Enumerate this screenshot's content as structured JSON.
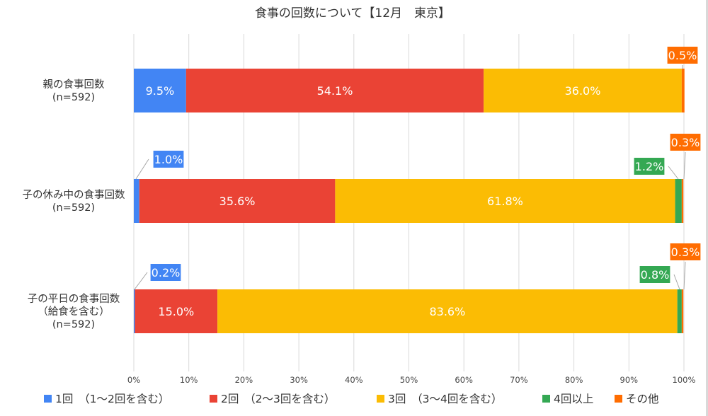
{
  "chart_data": {
    "type": "bar",
    "orientation": "horizontal",
    "stacked": "percent",
    "title": "食事の回数について【12月　東京】",
    "categories": [
      [
        "親の食事回数",
        "(n=592)"
      ],
      [
        "子の休み中の食事回数",
        "(n=592)"
      ],
      [
        "子の平日の食事回数",
        "（給食を含む）",
        "(n=592)"
      ]
    ],
    "series": [
      {
        "name": "1回　（1～2回を含む）",
        "color": "#4285f4",
        "values": [
          9.5,
          1.0,
          0.2
        ],
        "labels": [
          "9.5%",
          "1.0%",
          "0.2%"
        ]
      },
      {
        "name": "2回　（2～3回を含む）",
        "color": "#ea4335",
        "values": [
          54.1,
          35.6,
          15.0
        ],
        "labels": [
          "54.1%",
          "35.6%",
          "15.0%"
        ]
      },
      {
        "name": "3回　（3～4回を含む）",
        "color": "#fbbc04",
        "values": [
          36.0,
          61.8,
          83.6
        ],
        "labels": [
          "36.0%",
          "61.8%",
          "83.6%"
        ]
      },
      {
        "name": "4回以上",
        "color": "#34a853",
        "values": [
          0.0,
          1.2,
          0.8
        ],
        "labels": [
          "",
          "1.2%",
          "0.8%"
        ]
      },
      {
        "name": "その他",
        "color": "#ff6d01",
        "values": [
          0.5,
          0.3,
          0.3
        ],
        "labels": [
          "0.5%",
          "0.3%",
          "0.3%"
        ]
      }
    ],
    "xlim": [
      0,
      100
    ],
    "xticks": [
      "0%",
      "10%",
      "20%",
      "30%",
      "40%",
      "50%",
      "60%",
      "70%",
      "80%",
      "90%",
      "100%"
    ],
    "grid": true,
    "legend_position": "bottom"
  }
}
